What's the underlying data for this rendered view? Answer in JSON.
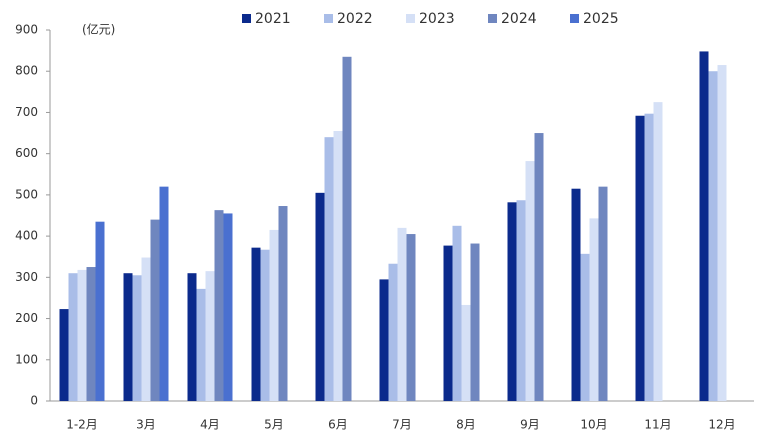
{
  "chart_data": {
    "type": "bar",
    "y_label": "(亿元)",
    "categories": [
      "1-2月",
      "3月",
      "4月",
      "5月",
      "6月",
      "7月",
      "8月",
      "9月",
      "10月",
      "11月",
      "12月"
    ],
    "series": [
      {
        "name": "2021",
        "color": "#0b2a8c",
        "values": [
          223,
          310,
          310,
          372,
          505,
          295,
          377,
          482,
          515,
          692,
          848
        ]
      },
      {
        "name": "2022",
        "color": "#a9bde8",
        "values": [
          310,
          305,
          272,
          367,
          640,
          333,
          425,
          487,
          357,
          697,
          800
        ]
      },
      {
        "name": "2023",
        "color": "#d5e0f6",
        "values": [
          318,
          348,
          315,
          415,
          655,
          420,
          233,
          582,
          443,
          725,
          815
        ]
      },
      {
        "name": "2024",
        "color": "#6f86bf",
        "values": [
          325,
          440,
          463,
          473,
          835,
          405,
          382,
          650,
          520,
          null,
          null
        ]
      },
      {
        "name": "2025",
        "color": "#4a70d0",
        "values": [
          435,
          520,
          455,
          null,
          null,
          null,
          null,
          null,
          null,
          null,
          null
        ]
      }
    ],
    "ylim": [
      0,
      900
    ],
    "yticks": [
      0,
      100,
      200,
      300,
      400,
      500,
      600,
      700,
      800,
      900
    ],
    "grid": false
  }
}
